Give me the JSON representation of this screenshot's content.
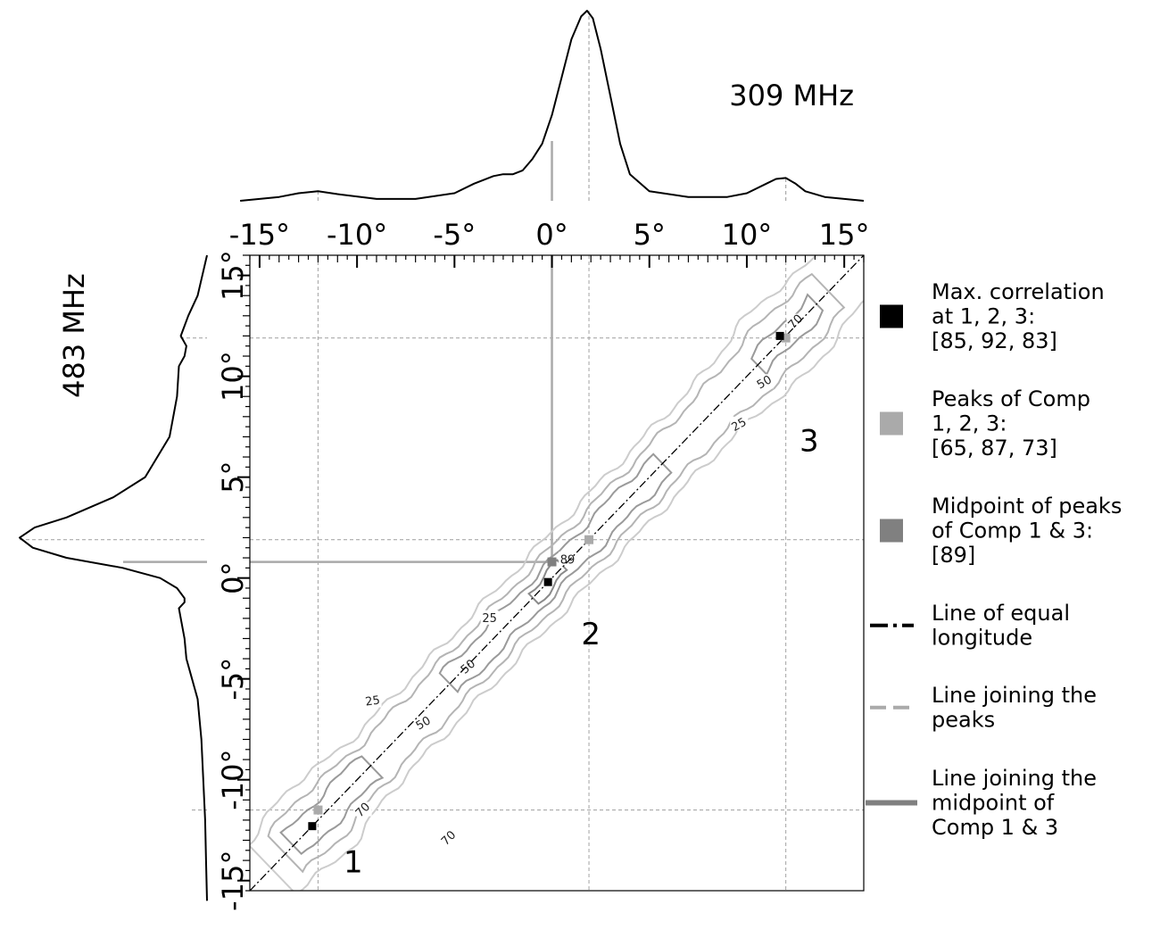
{
  "chart_data": {
    "type": "heatmap",
    "top_panel": {
      "label": "309 MHz",
      "xlim": [
        -16,
        16
      ],
      "x_ticks": [
        "-15°",
        "-10°",
        "-5°",
        "0°",
        "5°",
        "10°",
        "15°"
      ],
      "x_tick_values": [
        -15,
        -10,
        -5,
        0,
        5,
        10,
        15
      ],
      "profile": {
        "x": [
          -16,
          -14,
          -13,
          -12,
          -11,
          -9,
          -7,
          -5,
          -4,
          -3,
          -2.5,
          -2,
          -1.5,
          -1,
          -0.5,
          0,
          0.5,
          1,
          1.5,
          1.8,
          2.1,
          2.5,
          3,
          3.5,
          4,
          5,
          7,
          9,
          10,
          11,
          11.5,
          12,
          12.5,
          13,
          14,
          15,
          16
        ],
        "y": [
          0.0,
          0.02,
          0.04,
          0.05,
          0.035,
          0.01,
          0.01,
          0.04,
          0.09,
          0.13,
          0.14,
          0.14,
          0.16,
          0.22,
          0.3,
          0.45,
          0.65,
          0.85,
          0.97,
          1.0,
          0.96,
          0.8,
          0.55,
          0.3,
          0.14,
          0.05,
          0.02,
          0.02,
          0.04,
          0.09,
          0.115,
          0.12,
          0.09,
          0.05,
          0.02,
          0.01,
          0.0
        ]
      }
    },
    "left_panel": {
      "label": "483 MHz",
      "ylim": [
        -16,
        16
      ],
      "y_ticks": [
        "-15°",
        "-10°",
        "-5°",
        "0°",
        "5°",
        "10°",
        "15°"
      ],
      "y_tick_values": [
        -15,
        -10,
        -5,
        0,
        5,
        10,
        15
      ],
      "profile": {
        "y": [
          16,
          14,
          13,
          12.5,
          12,
          11.5,
          11,
          10.5,
          9,
          7,
          5,
          4,
          3,
          2.5,
          2,
          1.5,
          1,
          0.5,
          0,
          -0.5,
          -1,
          -1.2,
          -1.5,
          -2,
          -3,
          -4,
          -5,
          -6,
          -8,
          -10,
          -12,
          -14,
          -16
        ],
        "x": [
          0.0,
          0.05,
          0.1,
          0.12,
          0.14,
          0.11,
          0.12,
          0.15,
          0.16,
          0.2,
          0.33,
          0.5,
          0.75,
          0.92,
          1.0,
          0.93,
          0.75,
          0.45,
          0.25,
          0.16,
          0.12,
          0.12,
          0.15,
          0.14,
          0.12,
          0.11,
          0.08,
          0.05,
          0.03,
          0.02,
          0.01,
          0.005,
          0.0
        ]
      }
    },
    "contour_levels": [
      25,
      50,
      70,
      89
    ],
    "contour_label_texts": [
      "25",
      "50",
      "70",
      "25",
      "50",
      "70",
      "25",
      "50",
      "70",
      "89"
    ],
    "markers": {
      "max_correlation": [
        [
          -12.3,
          -12.3
        ],
        [
          -0.2,
          -0.2
        ],
        [
          11.7,
          12.0
        ]
      ],
      "comp_peaks": [
        [
          -12.0,
          -11.5
        ],
        [
          1.9,
          1.9
        ],
        [
          12.0,
          11.9
        ]
      ],
      "midpoint": [
        [
          0.0,
          0.8
        ]
      ]
    },
    "reference_lines": {
      "peak_x": [
        -12.0,
        1.9,
        12.0
      ],
      "peak_y": [
        -11.5,
        1.9,
        11.9
      ],
      "midpoint_x": 0.0,
      "midpoint_y": 0.8
    },
    "region_labels": [
      {
        "text": "1",
        "x": -10.2,
        "y": -14.6
      },
      {
        "text": "2",
        "x": 2.0,
        "y": -3.3
      },
      {
        "text": "3",
        "x": 13.2,
        "y": 6.3
      }
    ],
    "legend": [
      {
        "symbol": "square",
        "color": "#000000",
        "text": [
          "Max. correlation",
          "at 1, 2, 3:",
          "[85, 92, 83]"
        ]
      },
      {
        "symbol": "square",
        "color": "#aaaaaa",
        "text": [
          "Peaks of Comp",
          "1, 2, 3:",
          " [65, 87, 73]"
        ]
      },
      {
        "symbol": "square",
        "color": "#808080",
        "text": [
          "Midpoint of peaks",
          "of Comp 1 & 3:",
          " [89]"
        ]
      },
      {
        "symbol": "dashdot",
        "color": "#000000",
        "text": [
          "Line of equal",
          " longitude"
        ]
      },
      {
        "symbol": "dashed",
        "color": "#aaaaaa",
        "text": [
          "Line joining the",
          "peaks"
        ]
      },
      {
        "symbol": "solid",
        "color": "#808080",
        "text": [
          "Line joining the",
          "midpoint of",
          "Comp 1 & 3"
        ]
      }
    ],
    "colors": {
      "contour_25": "#cccccc",
      "contour_50": "#b4b4b4",
      "contour_70": "#9a9a9a",
      "contour_89": "#8a8a8a",
      "grid_dashed": "#aaaaaa",
      "mid_line": "#aaaaaa"
    }
  }
}
